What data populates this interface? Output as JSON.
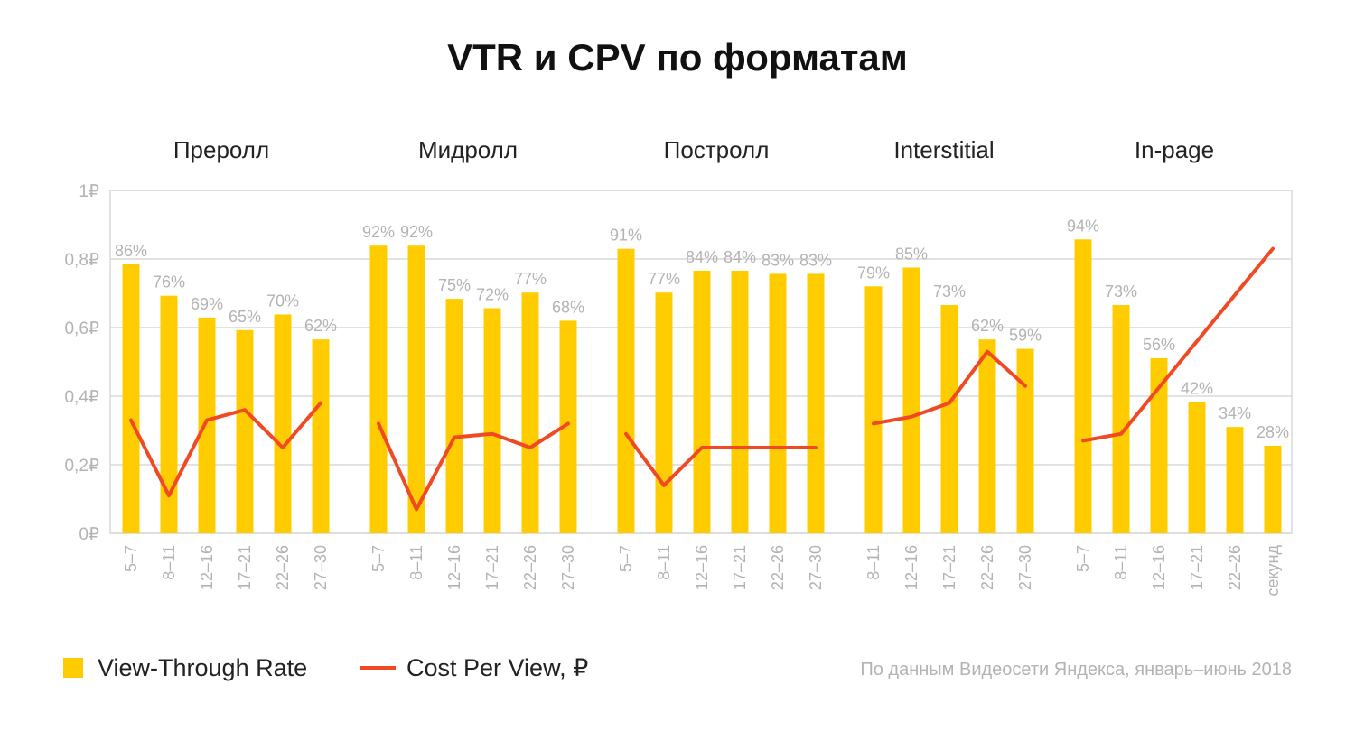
{
  "title": "VTR и CPV по форматам",
  "legend": {
    "bar_label": "View-Through Rate",
    "line_label": "Cost Per View, ₽"
  },
  "source_note": "По данным Видеосети Яндекса, январь–июнь 2018",
  "colors": {
    "bar": "#FFCC00",
    "line": "#F04A25",
    "grid": "#d9d9d9",
    "axis_text": "#b3b3b3",
    "value_label": "#b3b3b3",
    "group_title": "#222222"
  },
  "chart_data": {
    "type": "bar",
    "y_axis": {
      "ylim": [
        0,
        1
      ],
      "ticks": [
        {
          "value": 0,
          "label": "0₽"
        },
        {
          "value": 0.2,
          "label": "0,2₽"
        },
        {
          "value": 0.4,
          "label": "0,4₽"
        },
        {
          "value": 0.6,
          "label": "0,6₽"
        },
        {
          "value": 0.8,
          "label": "0,8₽"
        },
        {
          "value": 1,
          "label": "1₽"
        }
      ]
    },
    "grid": true,
    "legend_position": "bottom-left",
    "bar_scale_note": "VTR бары нарисованы так, что 100% ≈ 0,91₽ по оси",
    "groups": [
      {
        "name": "Преролл",
        "categories": [
          "5–7",
          "8–11",
          "12–16",
          "17–21",
          "22–26",
          "27–30"
        ],
        "vtr": [
          86,
          76,
          69,
          65,
          70,
          62
        ],
        "vtr_labels": [
          "86%",
          "76%",
          "69%",
          "65%",
          "70%",
          "62%"
        ],
        "cpv": [
          0.33,
          0.11,
          0.33,
          0.36,
          0.25,
          0.38
        ]
      },
      {
        "name": "Мидролл",
        "categories": [
          "5–7",
          "8–11",
          "12–16",
          "17–21",
          "22–26",
          "27–30"
        ],
        "vtr": [
          92,
          92,
          75,
          72,
          77,
          68
        ],
        "vtr_labels": [
          "92%",
          "92%",
          "75%",
          "72%",
          "77%",
          "68%"
        ],
        "cpv": [
          0.32,
          0.07,
          0.28,
          0.29,
          0.25,
          0.32
        ]
      },
      {
        "name": "Постролл",
        "categories": [
          "5–7",
          "8–11",
          "12–16",
          "17–21",
          "22–26",
          "27–30"
        ],
        "vtr": [
          91,
          77,
          84,
          84,
          83,
          83
        ],
        "vtr_labels": [
          "91%",
          "77%",
          "84%",
          "84%",
          "83%",
          "83%"
        ],
        "cpv": [
          0.29,
          0.14,
          0.25,
          0.25,
          0.25,
          0.25
        ]
      },
      {
        "name": "Interstitial",
        "categories": [
          "8–11",
          "12–16",
          "17–21",
          "22–26",
          "27–30"
        ],
        "vtr": [
          79,
          85,
          73,
          62,
          59
        ],
        "vtr_labels": [
          "79%",
          "85%",
          "73%",
          "62%",
          "59%"
        ],
        "cpv": [
          0.32,
          0.34,
          0.38,
          0.53,
          0.43
        ]
      },
      {
        "name": "In-page",
        "categories": [
          "5–7",
          "8–11",
          "12–16",
          "17–21",
          "22–26",
          "секунд"
        ],
        "vtr": [
          94,
          73,
          56,
          42,
          34,
          28
        ],
        "vtr_labels": [
          "94%",
          "73%",
          "56%",
          "42%",
          "34%",
          "28%"
        ],
        "cpv": [
          0.27,
          0.29,
          null,
          null,
          null,
          0.83
        ]
      }
    ]
  }
}
